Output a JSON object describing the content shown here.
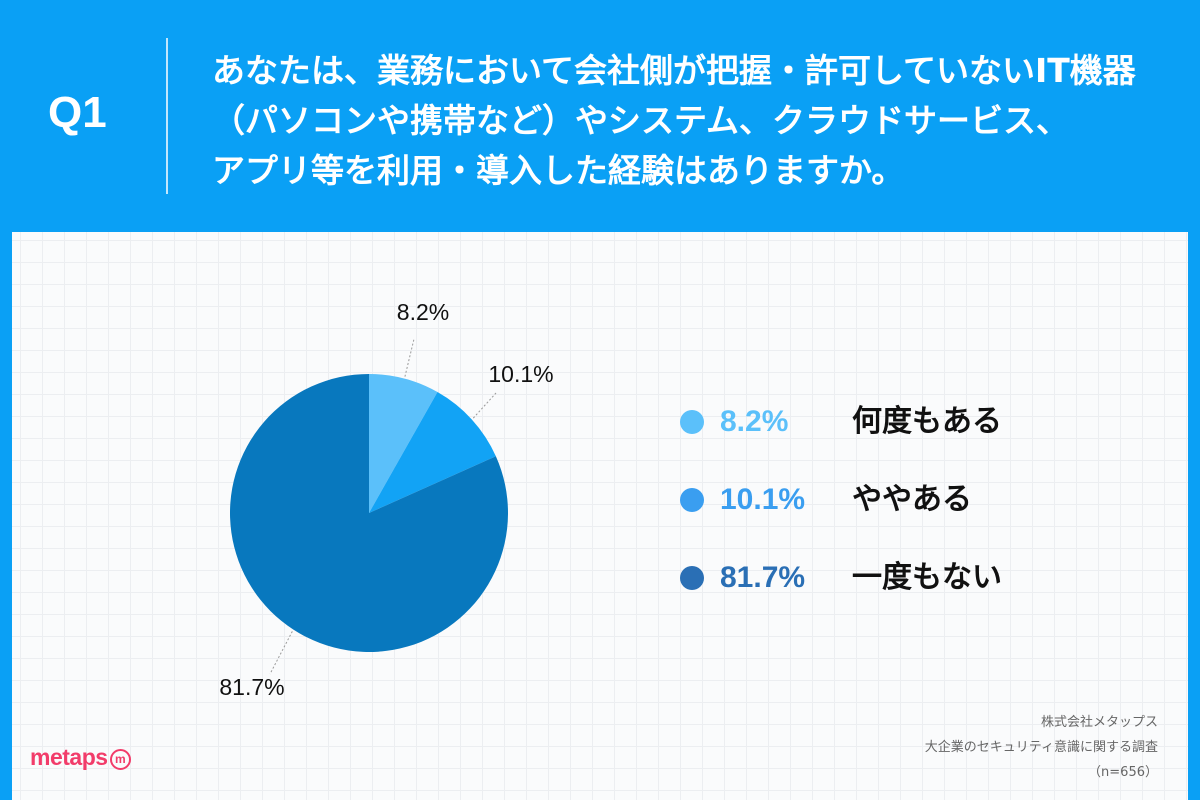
{
  "header": {
    "q_label": "Q1",
    "question_lines": [
      "あなたは、業務において会社側が把握・許可していないIT機器",
      "（パソコンや携帯など）やシステム、クラウドサービス、",
      "アプリ等を利用・導入した経験はありますか。"
    ]
  },
  "chart_data": {
    "type": "pie",
    "start": "12 o'clock, clockwise",
    "slices": [
      {
        "label": "何度もある",
        "value": 8.2,
        "display": "8.2%",
        "color": "#5BC0FA"
      },
      {
        "label": "ややある",
        "value": 10.1,
        "display": "10.1%",
        "color": "#12A3F5"
      },
      {
        "label": "一度もない",
        "value": 81.7,
        "display": "81.7%",
        "color": "#0878BE"
      }
    ],
    "legend_placement": "right"
  },
  "legend": [
    {
      "value": "8.2%",
      "label": "何度もある",
      "color": "#5BC0FA"
    },
    {
      "value": "10.1%",
      "label": "ややある",
      "color": "#3A9EF0"
    },
    {
      "value": "81.7%",
      "label": "一度もない",
      "color": "#2A6FB5"
    }
  ],
  "logo": {
    "text": "metaps",
    "mark": "m"
  },
  "credit": {
    "company": "株式会社メタップス",
    "survey": "大企業のセキュリティ意識に関する調査",
    "sample": "（n=656）"
  }
}
